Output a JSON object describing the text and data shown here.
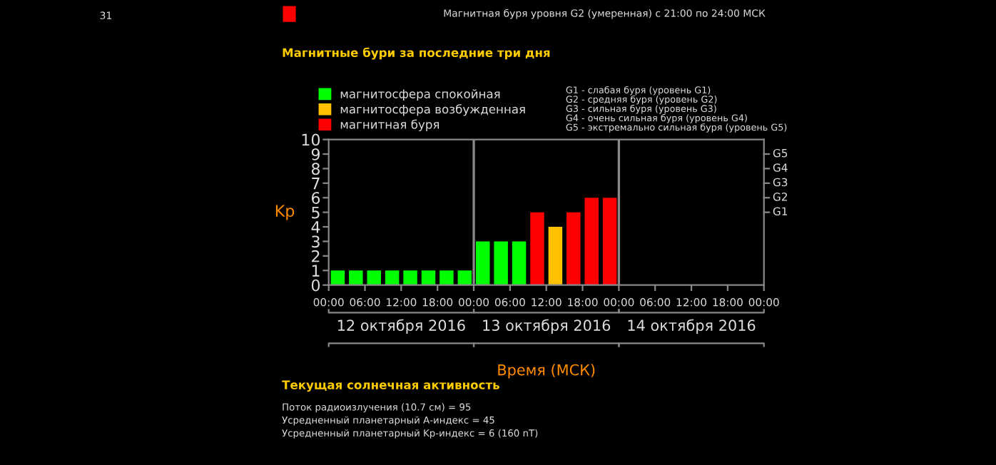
{
  "chart_data": {
    "type": "bar",
    "title": "Магнитные бури за последние три дня",
    "xlabel": "Время (МСК)",
    "ylabel": "Kp",
    "x": [
      "2016-10-12T01:30",
      "2016-10-12T04:30",
      "2016-10-12T07:30",
      "2016-10-12T10:30",
      "2016-10-12T13:30",
      "2016-10-12T16:30",
      "2016-10-12T19:30",
      "2016-10-12T22:30",
      "2016-10-13T01:30",
      "2016-10-13T04:30",
      "2016-10-13T07:30",
      "2016-10-13T10:30",
      "2016-10-13T13:30",
      "2016-10-13T16:30",
      "2016-10-13T19:30",
      "2016-10-13T22:30"
    ],
    "series": [
      {
        "name": "магнитосфера спокойная",
        "color": "#00ff00",
        "values": [
          1,
          1,
          1,
          1,
          1,
          1,
          1,
          1,
          3,
          3,
          3,
          null,
          null,
          null,
          null,
          null
        ]
      },
      {
        "name": "магнитосфера возбужденная",
        "color": "#ffc000",
        "values": [
          null,
          null,
          null,
          null,
          null,
          null,
          null,
          null,
          null,
          null,
          null,
          null,
          4,
          null,
          null,
          null
        ]
      },
      {
        "name": "магнитная буря",
        "color": "#ff0000",
        "values": [
          null,
          null,
          null,
          null,
          null,
          null,
          null,
          null,
          null,
          null,
          null,
          5,
          null,
          5,
          6,
          6
        ]
      }
    ],
    "xlim": [
      "2016-10-12T00:00",
      "2016-10-15T00:00"
    ],
    "xticks": [
      {
        "value": "2016-10-12T00:00",
        "label": "00:00"
      },
      {
        "value": "2016-10-12T06:00",
        "label": "06:00"
      },
      {
        "value": "2016-10-12T12:00",
        "label": "12:00"
      },
      {
        "value": "2016-10-12T18:00",
        "label": "18:00"
      },
      {
        "value": "2016-10-13T00:00",
        "label": "00:00"
      },
      {
        "value": "2016-10-13T06:00",
        "label": "06:00"
      },
      {
        "value": "2016-10-13T12:00",
        "label": "12:00"
      },
      {
        "value": "2016-10-13T18:00",
        "label": "18:00"
      },
      {
        "value": "2016-10-14T00:00",
        "label": "00:00"
      },
      {
        "value": "2016-10-14T06:00",
        "label": "06:00"
      },
      {
        "value": "2016-10-14T12:00",
        "label": "12:00"
      },
      {
        "value": "2016-10-14T18:00",
        "label": "18:00"
      },
      {
        "value": "2016-10-15T00:00",
        "label": "00:00"
      }
    ],
    "ylim": [
      0,
      10
    ],
    "yticks": [
      0,
      1,
      2,
      3,
      4,
      5,
      6,
      7,
      8,
      9,
      10
    ],
    "ref_lines": [
      {
        "axis": "x",
        "value": "2016-10-13T00:00",
        "label": null
      },
      {
        "axis": "x",
        "value": "2016-10-14T00:00",
        "label": null
      },
      {
        "axis": "y",
        "value": 5,
        "label": "G1"
      },
      {
        "axis": "y",
        "value": 6,
        "label": "G2"
      },
      {
        "axis": "y",
        "value": 7,
        "label": "G3"
      },
      {
        "axis": "y",
        "value": 8,
        "label": "G4"
      },
      {
        "axis": "y",
        "value": 9,
        "label": "G5"
      }
    ],
    "legend": "top left",
    "grid": false,
    "annotations": [
      "31",
      "Магнитная буря уровня G2 (умеренная) с 21:00 по 24:00 МСК",
      "12 октября 2016",
      "13 октября 2016",
      "14 октября 2016",
      "G1 - слабая буря (уровень G1)\nG2 - средняя буря (уровень G2)\nG3 - сильная буря (уровень G3)\nG4 - очень сильная буря (уровень G4)\nG5 - экстремально сильная буря (уровень G5)",
      "Текущая солнечная активность",
      "Поток радиоизлучения (10.7 см) = 95",
      "Усредненный планетарный А-индекс = 45",
      "Усредненный планетарный Kp-индекс = 6 (160 nT)"
    ]
  }
}
